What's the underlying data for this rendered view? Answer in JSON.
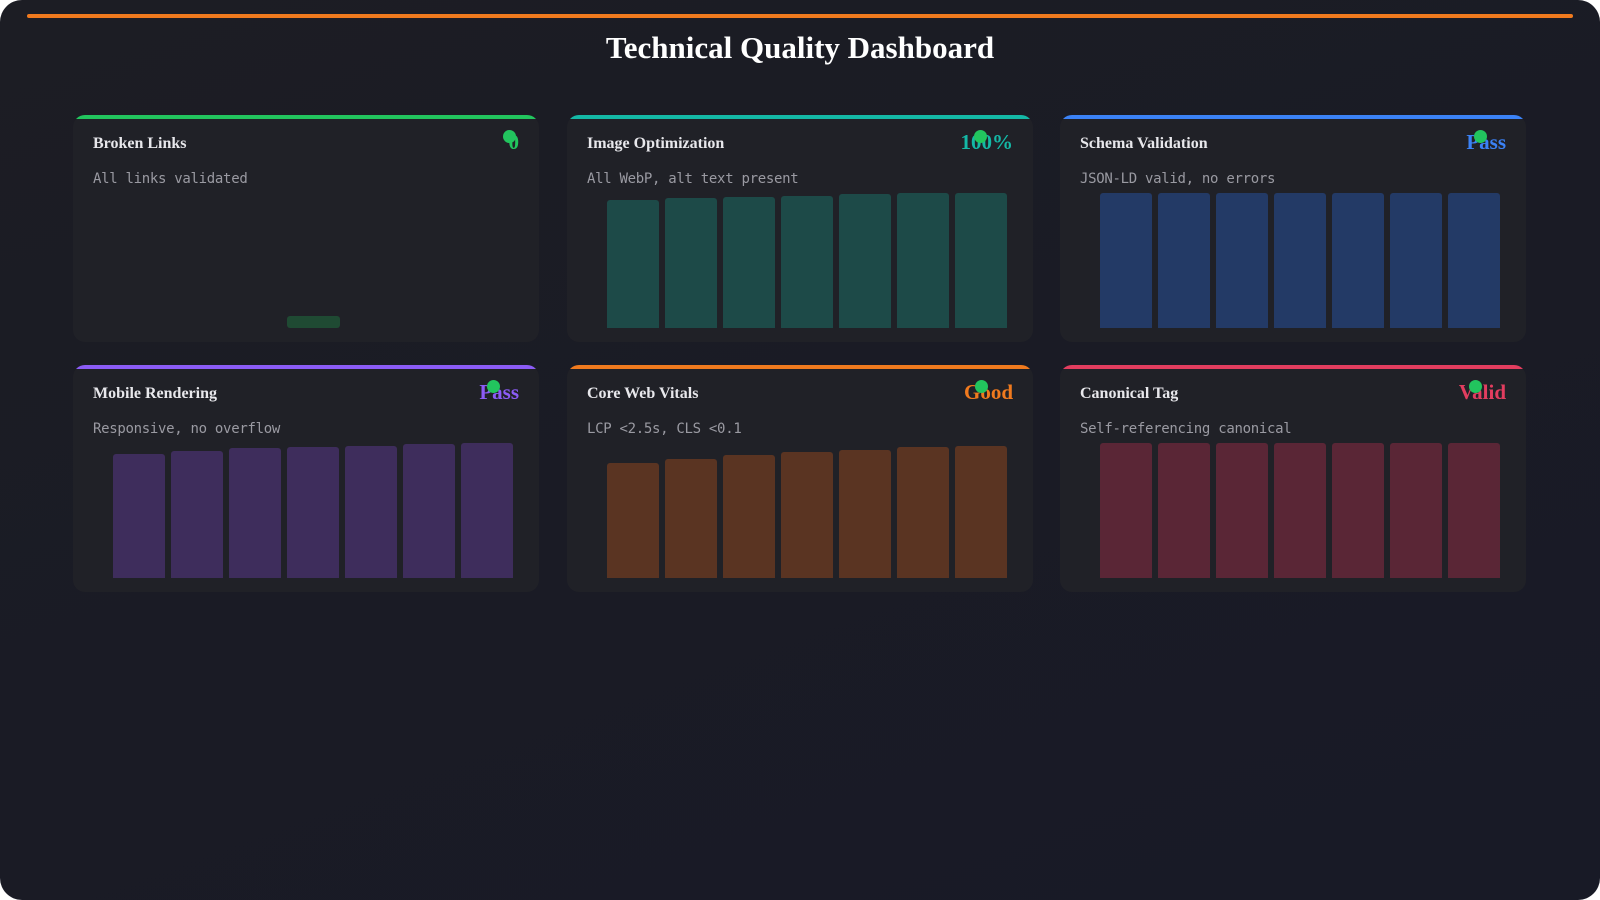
{
  "title": "Technical Quality Dashboard",
  "cards": [
    {
      "title": "Broken Links",
      "value": "0",
      "desc": "All links validated",
      "color": "#22c55e",
      "bar_color": "#1f4a33",
      "bars": [
        6
      ]
    },
    {
      "title": "Image Optimization",
      "value": "100%",
      "desc": "All WebP, alt text present",
      "color": "#14b8a6",
      "bar_color": "#1d4a48",
      "bars": [
        95,
        96,
        97,
        98,
        99,
        100,
        100
      ]
    },
    {
      "title": "Schema Validation",
      "value": "Pass",
      "desc": "JSON-LD valid, no errors",
      "color": "#3b82f6",
      "bar_color": "#233a66",
      "bars": [
        100,
        100,
        100,
        100,
        100,
        100,
        100
      ]
    },
    {
      "title": "Mobile Rendering",
      "value": "Pass",
      "desc": "Responsive, no overflow",
      "color": "#8b5cf6",
      "bar_color": "#3e2d5c",
      "bars": [
        92,
        94,
        96,
        97,
        98,
        99,
        100
      ]
    },
    {
      "title": "Core Web Vitals",
      "value": "Good",
      "desc": "LCP <2.5s, CLS <0.1",
      "color": "#f07a1e",
      "bar_color": "#5a3422",
      "bars": [
        85,
        88,
        91,
        93,
        95,
        97,
        98
      ]
    },
    {
      "title": "Canonical Tag",
      "value": "Valid",
      "desc": "Self-referencing canonical",
      "color": "#e23d5f",
      "bar_color": "#5a2636",
      "bars": [
        100,
        100,
        100,
        100,
        100,
        100,
        100
      ]
    }
  ]
}
